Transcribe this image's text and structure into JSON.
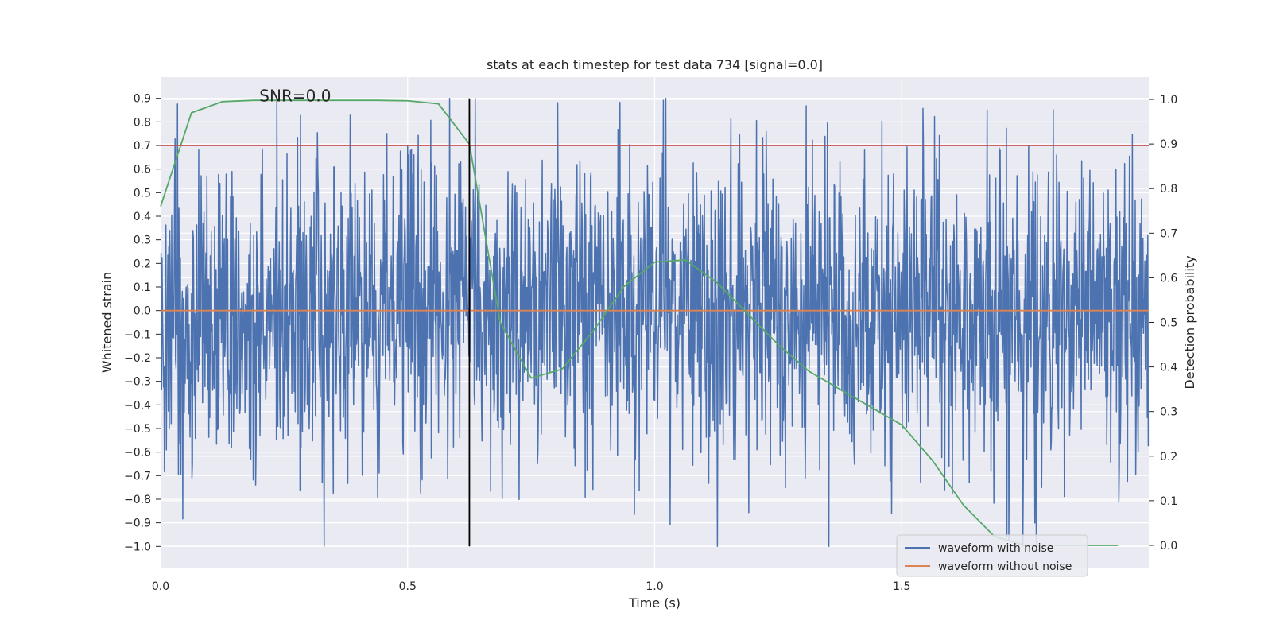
{
  "chart_data": {
    "type": "line",
    "title": "stats at each timestep for test data 734 [signal=0.0]",
    "xlabel": "Time (s)",
    "ylabel": "Whitened strain",
    "y2label": "Detection probability",
    "xlim": [
      0.0,
      2.0
    ],
    "ylim": [
      -1.09,
      0.99
    ],
    "y2lim": [
      -0.05,
      1.05
    ],
    "grid": true,
    "x_ticks": [
      0.0,
      0.5,
      1.0,
      1.5
    ],
    "x_tick_labels": [
      "0.0",
      "0.5",
      "1.0",
      "1.5"
    ],
    "y_ticks": [
      0.9,
      0.8,
      0.7,
      0.6,
      0.5,
      0.4,
      0.3,
      0.2,
      0.1,
      0.0,
      -0.1,
      -0.2,
      -0.3,
      -0.4,
      -0.5,
      -0.6,
      -0.7,
      -0.8,
      -0.9,
      -1.0
    ],
    "y_tick_labels": [
      "0.9",
      "0.8",
      "0.7",
      "0.6",
      "0.5",
      "0.4",
      "0.3",
      "0.2",
      "0.1",
      "0.0",
      "−0.1",
      "−0.2",
      "−0.3",
      "−0.4",
      "−0.5",
      "−0.6",
      "−0.7",
      "−0.8",
      "−0.9",
      "−1.0"
    ],
    "y2_ticks": [
      1.0,
      0.9,
      0.8,
      0.7,
      0.6,
      0.5,
      0.4,
      0.3,
      0.2,
      0.1,
      0.0
    ],
    "y2_tick_labels": [
      "1.0",
      "0.9",
      "0.8",
      "0.7",
      "0.6",
      "0.5",
      "0.4",
      "0.3",
      "0.2",
      "0.1",
      "0.0"
    ],
    "annotation": "SNR=0.0",
    "annotation_pos": {
      "x": 0.2,
      "y": 0.9
    },
    "threshold": {
      "y": 0.7,
      "color": "#c44e52"
    },
    "marker_line": {
      "x": 0.625,
      "y_from": -1.0,
      "y_to": 0.9,
      "color": "#000000"
    },
    "noise_series": {
      "name": "waveform with noise",
      "color": "#4c72b0",
      "n_points": 2048,
      "amplitude": 0.34,
      "clip": [
        -1.0,
        0.9
      ],
      "seed": 734
    },
    "series": [
      {
        "name": "waveform without noise",
        "color": "#dd8452",
        "axis": "left",
        "x": [
          0.0,
          2.0
        ],
        "values": [
          0.0,
          0.0
        ]
      },
      {
        "name": "detection probability",
        "color": "#55a868",
        "axis": "right",
        "x": [
          0.0,
          0.0625,
          0.125,
          0.1875,
          0.25,
          0.3125,
          0.375,
          0.4375,
          0.5,
          0.5625,
          0.625,
          0.6875,
          0.75,
          0.8125,
          0.875,
          0.9375,
          1.0,
          1.0625,
          1.125,
          1.1875,
          1.25,
          1.3125,
          1.375,
          1.4375,
          1.5,
          1.5625,
          1.625,
          1.6875,
          1.75,
          1.8125,
          1.875,
          1.9375
        ],
        "values": [
          0.76,
          0.97,
          0.995,
          0.998,
          0.998,
          0.998,
          0.998,
          0.998,
          0.997,
          0.99,
          0.9,
          0.5,
          0.375,
          0.395,
          0.48,
          0.58,
          0.635,
          0.64,
          0.59,
          0.52,
          0.45,
          0.39,
          0.35,
          0.31,
          0.27,
          0.19,
          0.09,
          0.02,
          0.0,
          0.0,
          0.0,
          0.0
        ]
      }
    ],
    "legend": {
      "position": "lower-right",
      "entries": [
        {
          "label": "waveform with noise",
          "color": "#4c72b0"
        },
        {
          "label": "waveform without noise",
          "color": "#dd8452"
        }
      ]
    },
    "colors": {
      "plot_background": "#eaeaf2",
      "grid": "#ffffff",
      "text": "#262626"
    }
  }
}
